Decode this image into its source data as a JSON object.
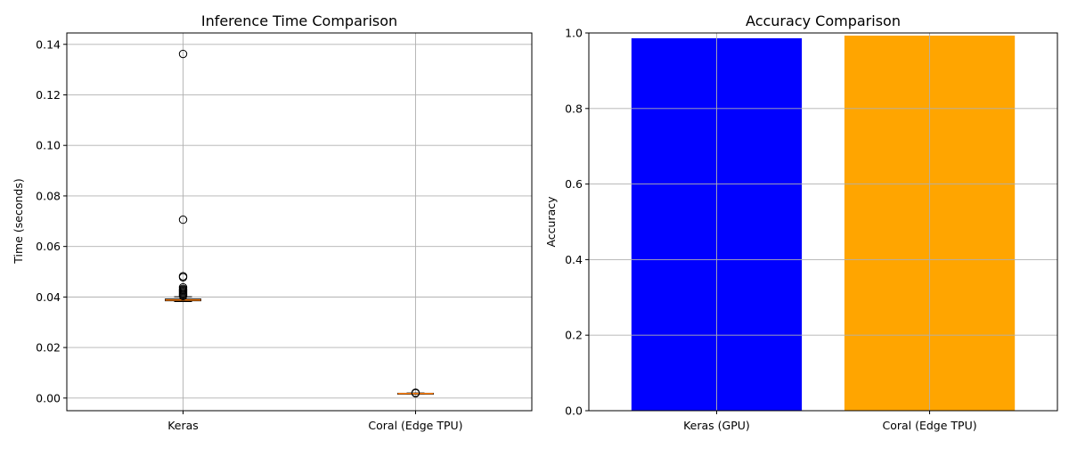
{
  "chart_data": [
    {
      "type": "box",
      "title": "Inference Time Comparison",
      "xlabel": "",
      "ylabel": "Time (seconds)",
      "ylim": [
        -0.005,
        0.1445
      ],
      "yticks": [
        0.0,
        0.02,
        0.04,
        0.06,
        0.08,
        0.1,
        0.12,
        0.14
      ],
      "yticks_labels": [
        "0.00",
        "0.02",
        "0.04",
        "0.06",
        "0.08",
        "0.10",
        "0.12",
        "0.14"
      ],
      "grid": true,
      "categories": [
        "Keras",
        "Coral (Edge TPU)"
      ],
      "boxes": [
        {
          "category": "Keras",
          "q1": 0.0385,
          "median": 0.0388,
          "q3": 0.0392,
          "whisker_low": 0.0382,
          "whisker_high": 0.0401,
          "outliers": [
            0.1362,
            0.0706,
            0.0482,
            0.0478,
            0.0438,
            0.0432,
            0.0428,
            0.0424,
            0.042,
            0.0416,
            0.0412,
            0.0408,
            0.0404
          ]
        },
        {
          "category": "Coral (Edge TPU)",
          "q1": 0.0017,
          "median": 0.0018,
          "q3": 0.0019,
          "whisker_low": 0.0016,
          "whisker_high": 0.002,
          "outliers": [
            0.0021,
            0.0019
          ]
        }
      ],
      "colors": {
        "median": "#ff7f0e",
        "box": "#000000",
        "flier": "#000000"
      }
    },
    {
      "type": "bar",
      "title": "Accuracy Comparison",
      "xlabel": "",
      "ylabel": "Accuracy",
      "ylim": [
        0,
        1.0
      ],
      "yticks": [
        0.0,
        0.2,
        0.4,
        0.6,
        0.8,
        1.0
      ],
      "yticks_labels": [
        "0.0",
        "0.2",
        "0.4",
        "0.6",
        "0.8",
        "1.0"
      ],
      "grid": true,
      "categories": [
        "Keras (GPU)",
        "Coral (Edge TPU)"
      ],
      "values": [
        0.986,
        0.993
      ],
      "colors": [
        "#0000ff",
        "#ffa500"
      ]
    }
  ]
}
